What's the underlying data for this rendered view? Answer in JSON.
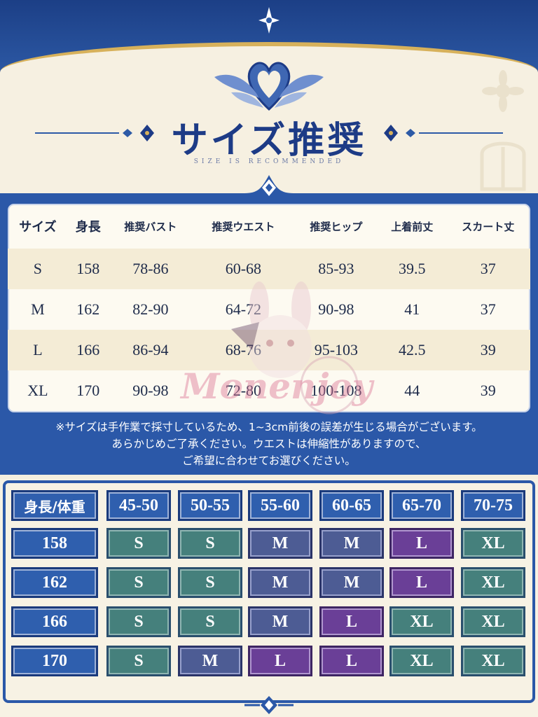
{
  "header": {
    "title": "サイズ推奨",
    "subtitle": "SIZE IS RECOMMENDED"
  },
  "size_table": {
    "headers": [
      "サイズ",
      "身長",
      "推奨バスト",
      "推奨ウエスト",
      "推奨ヒップ",
      "上着前丈",
      "スカート丈"
    ],
    "rows": [
      [
        "S",
        "158",
        "78-86",
        "60-68",
        "85-93",
        "39.5",
        "37"
      ],
      [
        "M",
        "162",
        "82-90",
        "64-72",
        "90-98",
        "41",
        "37"
      ],
      [
        "L",
        "166",
        "86-94",
        "68-76",
        "95-103",
        "42.5",
        "39"
      ],
      [
        "XL",
        "170",
        "90-98",
        "72-80",
        "100-108",
        "44",
        "39"
      ]
    ]
  },
  "note": {
    "line1": "※サイズは手作業で採寸しているため、1~3cm前後の誤差が生じる場合がございます。",
    "line2": "あらかじめご了承ください。ウエストは伸縮性がありますので、",
    "line3": "ご希望に合わせてお選びください。"
  },
  "watermark": "Monenjoy",
  "weight_grid": {
    "corner": "身長/体重",
    "columns": [
      "45-50",
      "50-55",
      "55-60",
      "60-65",
      "65-70",
      "70-75"
    ],
    "rows": [
      {
        "height": "158",
        "sizes": [
          "S",
          "S",
          "M",
          "M",
          "L",
          "XL"
        ]
      },
      {
        "height": "162",
        "sizes": [
          "S",
          "S",
          "M",
          "M",
          "L",
          "XL"
        ]
      },
      {
        "height": "166",
        "sizes": [
          "S",
          "S",
          "M",
          "L",
          "XL",
          "XL"
        ]
      },
      {
        "height": "170",
        "sizes": [
          "S",
          "M",
          "L",
          "L",
          "XL",
          "XL"
        ]
      }
    ],
    "size_colors": {
      "S": "#45807c",
      "M": "#4d5c94",
      "L": "#6a3f97",
      "XL": "#45807c"
    },
    "size_color_overrides": "row 170 col 50-55 M is slate; 166/170 L purple"
  },
  "colors": {
    "primary_blue": "#2b58a8",
    "gold": "#d7b15b",
    "cream": "#f6f0e1"
  }
}
